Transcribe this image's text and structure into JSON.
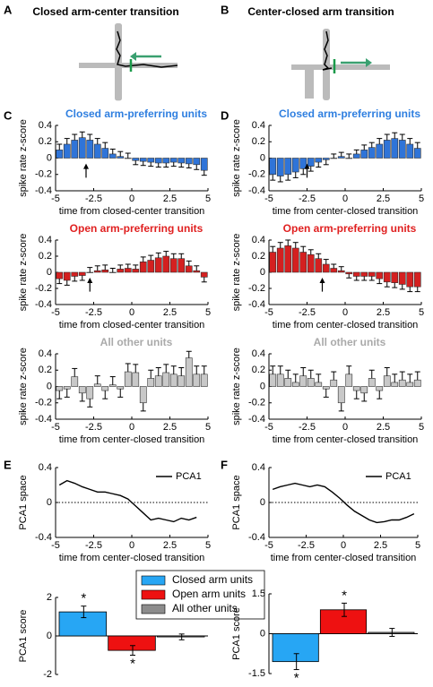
{
  "panels": [
    "A",
    "B",
    "C",
    "D",
    "E",
    "F"
  ],
  "maze_titles": [
    "Closed arm-center transition",
    "Center-closed arm transition"
  ],
  "chart_data": [
    {
      "type": "bar_error",
      "title": "Closed arm-preferring units",
      "color": "#2f74d8",
      "title_color": "#2f7fe0",
      "ylabel": "spike rate z-score",
      "xlabel": "time from closed-center transition",
      "x": [
        -4.75,
        -4.25,
        -3.75,
        -3.25,
        -2.75,
        -2.25,
        -1.75,
        -1.25,
        -0.75,
        -0.25,
        0.25,
        0.75,
        1.25,
        1.75,
        2.25,
        2.75,
        3.25,
        3.75,
        4.25,
        4.75
      ],
      "values": [
        0.1,
        0.17,
        0.22,
        0.25,
        0.22,
        0.17,
        0.12,
        0.05,
        0.02,
        0.0,
        -0.03,
        -0.04,
        -0.05,
        -0.06,
        -0.06,
        -0.05,
        -0.06,
        -0.07,
        -0.08,
        -0.15
      ],
      "errors": [
        0.07,
        0.07,
        0.07,
        0.07,
        0.07,
        0.07,
        0.07,
        0.06,
        0.06,
        0.06,
        0.05,
        0.05,
        0.05,
        0.05,
        0.05,
        0.05,
        0.05,
        0.05,
        0.06,
        0.06
      ],
      "arrow_x": -3,
      "xlim": [
        -5,
        5
      ],
      "ylim": [
        -0.4,
        0.4
      ],
      "xticks": [
        -5,
        -2.5,
        0,
        2.5,
        5
      ],
      "yticks": [
        -0.4,
        -0.2,
        0,
        0.2,
        0.4
      ]
    },
    {
      "type": "bar_error",
      "title": "Closed arm-preferring units",
      "color": "#2f74d8",
      "title_color": "#2f7fe0",
      "ylabel": "spike rate z-score",
      "xlabel": "time from center-closed transition",
      "x": [
        -4.75,
        -4.25,
        -3.75,
        -3.25,
        -2.75,
        -2.25,
        -1.75,
        -1.25,
        -0.75,
        -0.25,
        0.25,
        0.75,
        1.25,
        1.75,
        2.25,
        2.75,
        3.25,
        3.75,
        4.25,
        4.75
      ],
      "values": [
        -0.2,
        -0.22,
        -0.2,
        -0.17,
        -0.13,
        -0.1,
        -0.05,
        -0.02,
        0.0,
        0.02,
        0.0,
        0.05,
        0.1,
        0.13,
        0.17,
        0.22,
        0.24,
        0.22,
        0.17,
        0.12
      ],
      "errors": [
        0.07,
        0.07,
        0.07,
        0.07,
        0.07,
        0.06,
        0.06,
        0.06,
        0.05,
        0.05,
        0.05,
        0.05,
        0.06,
        0.06,
        0.07,
        0.07,
        0.07,
        0.07,
        0.07,
        0.07
      ],
      "arrow_x": -2.5,
      "xlim": [
        -5,
        5
      ],
      "ylim": [
        -0.4,
        0.4
      ],
      "xticks": [
        -5,
        -2.5,
        0,
        2.5,
        5
      ],
      "yticks": [
        -0.4,
        -0.2,
        0,
        0.2,
        0.4
      ]
    },
    {
      "type": "bar_error",
      "title": "Open arm-preferring units",
      "color": "#d42020",
      "title_color": "#e02020",
      "ylabel": "spike rate z-score",
      "xlabel": "time from closed-center transition",
      "x": [
        -4.75,
        -4.25,
        -3.75,
        -3.25,
        -2.75,
        -2.25,
        -1.75,
        -1.25,
        -0.75,
        -0.25,
        0.25,
        0.75,
        1.25,
        1.75,
        2.25,
        2.75,
        3.25,
        3.75,
        4.25,
        4.75
      ],
      "values": [
        -0.08,
        -0.1,
        -0.05,
        -0.04,
        0.0,
        0.02,
        0.03,
        0.0,
        0.04,
        0.05,
        0.04,
        0.13,
        0.15,
        0.18,
        0.2,
        0.17,
        0.17,
        0.08,
        0.02,
        -0.06
      ],
      "errors": [
        0.06,
        0.06,
        0.06,
        0.06,
        0.06,
        0.06,
        0.06,
        0.05,
        0.05,
        0.05,
        0.05,
        0.06,
        0.06,
        0.06,
        0.06,
        0.06,
        0.06,
        0.06,
        0.06,
        0.06
      ],
      "arrow_x": -2.75,
      "xlim": [
        -5,
        5
      ],
      "ylim": [
        -0.4,
        0.4
      ],
      "xticks": [
        -5,
        -2.5,
        0,
        2.5,
        5
      ],
      "yticks": [
        -0.4,
        -0.2,
        0,
        0.2,
        0.4
      ]
    },
    {
      "type": "bar_error",
      "title": "Open arm-preferring units",
      "color": "#d42020",
      "title_color": "#e02020",
      "ylabel": "spike rate z-score",
      "xlabel": "time from center-closed transition",
      "x": [
        -4.75,
        -4.25,
        -3.75,
        -3.25,
        -2.75,
        -2.25,
        -1.75,
        -1.25,
        -0.75,
        -0.25,
        0.25,
        0.75,
        1.25,
        1.75,
        2.25,
        2.75,
        3.25,
        3.75,
        4.25,
        4.75
      ],
      "values": [
        0.25,
        0.3,
        0.33,
        0.3,
        0.25,
        0.22,
        0.17,
        0.1,
        0.05,
        0.02,
        -0.02,
        -0.05,
        -0.05,
        -0.05,
        -0.08,
        -0.12,
        -0.13,
        -0.15,
        -0.18,
        -0.18
      ],
      "errors": [
        0.07,
        0.07,
        0.07,
        0.07,
        0.07,
        0.06,
        0.06,
        0.06,
        0.05,
        0.05,
        0.05,
        0.05,
        0.05,
        0.05,
        0.06,
        0.06,
        0.06,
        0.06,
        0.06,
        0.06
      ],
      "arrow_x": -1.5,
      "xlim": [
        -5,
        5
      ],
      "ylim": [
        -0.4,
        0.4
      ],
      "xticks": [
        -5,
        -2.5,
        0,
        2.5,
        5
      ],
      "yticks": [
        -0.4,
        -0.2,
        0,
        0.2,
        0.4
      ]
    },
    {
      "type": "bar_error",
      "title": "All other units",
      "color": "#c8c8c8",
      "title_color": "#aaaaaa",
      "ylabel": "spike rate z-score",
      "xlabel": "time from center-closed transition",
      "x": [
        -4.75,
        -4.25,
        -3.75,
        -3.25,
        -2.75,
        -2.25,
        -1.75,
        -1.25,
        -0.75,
        -0.25,
        0.25,
        0.75,
        1.25,
        1.75,
        2.25,
        2.75,
        3.25,
        3.75,
        4.25,
        4.75
      ],
      "values": [
        -0.05,
        -0.03,
        0.12,
        -0.08,
        -0.15,
        0.03,
        -0.05,
        0.02,
        -0.03,
        0.18,
        0.17,
        -0.2,
        0.1,
        0.13,
        0.17,
        0.15,
        0.13,
        0.35,
        0.15,
        0.15
      ],
      "errors": [
        0.1,
        0.1,
        0.1,
        0.1,
        0.1,
        0.1,
        0.1,
        0.1,
        0.1,
        0.1,
        0.1,
        0.1,
        0.1,
        0.1,
        0.1,
        0.1,
        0.1,
        0.08,
        0.1,
        0.1
      ],
      "xlim": [
        -5,
        5
      ],
      "ylim": [
        -0.4,
        0.4
      ],
      "xticks": [
        -5,
        -2.5,
        0,
        2.5,
        5
      ],
      "yticks": [
        -0.4,
        -0.2,
        0,
        0.2,
        0.4
      ]
    },
    {
      "type": "bar_error",
      "title": "All other units",
      "color": "#c8c8c8",
      "title_color": "#aaaaaa",
      "ylabel": "spike rate z-score",
      "xlabel": "time from center-closed transition",
      "x": [
        -4.75,
        -4.25,
        -3.75,
        -3.25,
        -2.75,
        -2.25,
        -1.75,
        -1.25,
        -0.75,
        -0.25,
        0.25,
        0.75,
        1.25,
        1.75,
        2.25,
        2.75,
        3.25,
        3.75,
        4.25,
        4.75
      ],
      "values": [
        0.15,
        0.15,
        0.1,
        0.05,
        0.13,
        0.1,
        0.05,
        -0.03,
        0.08,
        -0.2,
        0.15,
        -0.05,
        -0.08,
        0.1,
        -0.05,
        0.13,
        0.05,
        0.08,
        0.05,
        0.08
      ],
      "errors": [
        0.1,
        0.1,
        0.1,
        0.1,
        0.1,
        0.1,
        0.1,
        0.1,
        0.1,
        0.1,
        0.1,
        0.1,
        0.1,
        0.1,
        0.1,
        0.1,
        0.1,
        0.1,
        0.1,
        0.1
      ],
      "xlim": [
        -5,
        5
      ],
      "ylim": [
        -0.4,
        0.4
      ],
      "xticks": [
        -5,
        -2.5,
        0,
        2.5,
        5
      ],
      "yticks": [
        -0.4,
        -0.2,
        0,
        0.2,
        0.4
      ]
    },
    {
      "type": "line",
      "series_name": "PCA1",
      "color": "#000000",
      "ylabel": "PCA1 space",
      "xlabel": "time from center-closed transition",
      "x": [
        -4.75,
        -4.25,
        -3.75,
        -3.25,
        -2.75,
        -2.25,
        -1.75,
        -1.25,
        -0.75,
        -0.25,
        0.25,
        0.75,
        1.25,
        1.75,
        2.25,
        2.75,
        3.25,
        3.75,
        4.25
      ],
      "values": [
        0.2,
        0.25,
        0.22,
        0.18,
        0.15,
        0.12,
        0.12,
        0.1,
        0.08,
        0.04,
        -0.04,
        -0.12,
        -0.2,
        -0.18,
        -0.2,
        -0.22,
        -0.18,
        -0.2,
        -0.17
      ],
      "xlim": [
        -5,
        5
      ],
      "ylim": [
        -0.4,
        0.4
      ],
      "xticks": [
        -5,
        -2.5,
        0,
        2.5,
        5
      ],
      "yticks": [
        -0.4,
        0,
        0.4
      ]
    },
    {
      "type": "line",
      "series_name": "PCA1",
      "color": "#000000",
      "ylabel": "PCA1 space",
      "xlabel": "time from center-closed transition",
      "x": [
        -4.75,
        -4.25,
        -3.75,
        -3.25,
        -2.75,
        -2.25,
        -1.75,
        -1.25,
        -0.75,
        -0.25,
        0.25,
        0.75,
        1.25,
        1.75,
        2.25,
        2.75,
        3.25,
        3.75,
        4.25,
        4.75
      ],
      "values": [
        0.15,
        0.18,
        0.2,
        0.22,
        0.2,
        0.18,
        0.2,
        0.18,
        0.12,
        0.05,
        -0.03,
        -0.1,
        -0.15,
        -0.2,
        -0.23,
        -0.22,
        -0.2,
        -0.2,
        -0.17,
        -0.13
      ],
      "xlim": [
        -5,
        5
      ],
      "ylim": [
        -0.4,
        0.4
      ],
      "xticks": [
        -5,
        -2.5,
        0,
        2.5,
        5
      ],
      "yticks": [
        -0.4,
        0,
        0.4
      ]
    },
    {
      "type": "bar_cat",
      "ylabel": "PCA1 score",
      "categories": [
        "Closed arm units",
        "Open arm units",
        "All other units"
      ],
      "colors": [
        "#27a6f4",
        "#ee1111",
        "#8c8c8c"
      ],
      "values": [
        1.25,
        -0.75,
        -0.05
      ],
      "errors": [
        0.3,
        0.25,
        0.15
      ],
      "annotations": [
        {
          "text": "*",
          "index": 0,
          "side": "above"
        },
        {
          "text": "*",
          "index": 1,
          "side": "below"
        }
      ],
      "ylim": [
        -2,
        2
      ],
      "yticks": [
        -2,
        0,
        2
      ]
    },
    {
      "type": "bar_cat",
      "ylabel": "PCA1 score",
      "colors": [
        "#27a6f4",
        "#ee1111",
        "#8c8c8c"
      ],
      "values": [
        -1.05,
        0.9,
        0.05
      ],
      "errors": [
        0.3,
        0.25,
        0.15
      ],
      "annotations": [
        {
          "text": "*",
          "index": 0,
          "side": "below"
        },
        {
          "text": "*",
          "index": 1,
          "side": "above"
        }
      ],
      "ylim": [
        -1.5,
        1.5
      ],
      "yticks": [
        -1.5,
        0,
        1.5
      ]
    }
  ]
}
